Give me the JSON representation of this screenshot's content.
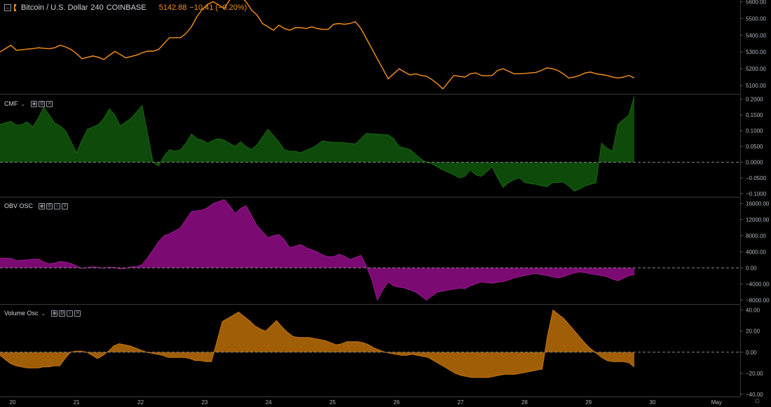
{
  "header": {
    "symbol": "Bitcoin / U.S. Dollar",
    "interval": "240",
    "exchange": "COINBASE",
    "last": "5142.88",
    "change": "−10.41 (−0.20%)"
  },
  "indicators": {
    "cmf": {
      "label": "CMF"
    },
    "obv": {
      "label": "OBV OSC"
    },
    "vol": {
      "label": "Volume Osc"
    }
  },
  "colors": {
    "price_line": "#f7931a",
    "cmf_fill": "#0e4a0a",
    "cmf_line": "#1b6512",
    "obv_fill": "#7b0a72",
    "obv_line": "#9a1a8f",
    "vol_fill": "#a05e07",
    "vol_line": "#c27410",
    "grid": "#333333",
    "axis_text": "#b2b5be"
  },
  "chart_data": [
    {
      "type": "line",
      "title": "Bitcoin / U.S. Dollar",
      "x": [
        0,
        1,
        2,
        3,
        4,
        5,
        6,
        7,
        8,
        9,
        10,
        11,
        12,
        13,
        14,
        15,
        16,
        17,
        18,
        19,
        20,
        21,
        22,
        23,
        24,
        25,
        26,
        27,
        28,
        29,
        30,
        31,
        32,
        33,
        34,
        35,
        36,
        37,
        38,
        39,
        40,
        41,
        42,
        43,
        44,
        45,
        46,
        47,
        48,
        49,
        50,
        51,
        52,
        53,
        54,
        55,
        56,
        57,
        58,
        59,
        60,
        61,
        62,
        63,
        64,
        65,
        66,
        67,
        68,
        69,
        70,
        71,
        72,
        73,
        74,
        75,
        76,
        77,
        78,
        79,
        80,
        81,
        82,
        83,
        84,
        85,
        86,
        87,
        88,
        89,
        90,
        91,
        92,
        93,
        94,
        95,
        96,
        97,
        98,
        99,
        100,
        101,
        102,
        103,
        104,
        105,
        106,
        107,
        108,
        109,
        110,
        111,
        112,
        113,
        114,
        115,
        116
      ],
      "series": [
        {
          "values": [
            5300,
            5320,
            5340,
            5310,
            5313,
            5317,
            5320,
            5325,
            5322,
            5319,
            5325,
            5340,
            5330,
            5315,
            5290,
            5260,
            5268,
            5276,
            5268,
            5255,
            5280,
            5303,
            5285,
            5265,
            5273,
            5281,
            5295,
            5305,
            5305,
            5315,
            5350,
            5385,
            5385,
            5385,
            5410,
            5450,
            5510,
            5555,
            5585,
            5600,
            5580,
            5560,
            5610,
            5660,
            5630,
            5600,
            5550,
            5520,
            5470,
            5450,
            5430,
            5460,
            5440,
            5430,
            5445,
            5445,
            5440,
            5450,
            5440,
            5435,
            5435,
            5465,
            5470,
            5465,
            5470,
            5480,
            5440,
            5380,
            5320,
            5260,
            5200,
            5140,
            5170,
            5200,
            5180,
            5163,
            5170,
            5160,
            5155,
            5135,
            5110,
            5080,
            5120,
            5160,
            5155,
            5150,
            5170,
            5175,
            5160,
            5158,
            5160,
            5190,
            5200,
            5185,
            5170,
            5170,
            5172,
            5175,
            5178,
            5190,
            5205,
            5200,
            5190,
            5170,
            5145,
            5150,
            5160,
            5175,
            5180,
            5170,
            5165,
            5160,
            5150,
            5145,
            5150,
            5160,
            5145
          ]
        }
      ],
      "ylim": [
        5050,
        5610
      ],
      "yticks": [
        "5600.00",
        "5500.00",
        "5400.00",
        "5300.00",
        "5200.00",
        "5100.00"
      ],
      "ytick_values": [
        5600,
        5500,
        5400,
        5300,
        5200,
        5100
      ],
      "xticks": [
        {
          "label": "20",
          "x": 0
        },
        {
          "label": "21",
          "x": 6
        },
        {
          "label": "22",
          "x": 12
        },
        {
          "label": "23",
          "x": 18
        },
        {
          "label": "24",
          "x": 24
        },
        {
          "label": "25",
          "x": 30
        },
        {
          "label": "26",
          "x": 36
        },
        {
          "label": "27",
          "x": 42
        },
        {
          "label": "28",
          "x": 48
        },
        {
          "label": "29",
          "x": 54
        },
        {
          "label": "30",
          "x": 60
        },
        {
          "label": "May",
          "x": 66
        }
      ]
    },
    {
      "type": "area",
      "title": "CMF",
      "series": [
        {
          "name": "CMF",
          "values": [
            0.12,
            0.125,
            0.13,
            0.118,
            0.12,
            0.128,
            0.112,
            0.14,
            0.175,
            0.15,
            0.125,
            0.115,
            0.1,
            0.065,
            0.03,
            0.07,
            0.105,
            0.112,
            0.12,
            0.14,
            0.17,
            0.15,
            0.115,
            0.128,
            0.14,
            0.16,
            0.18,
            0.09,
            0.0,
            -0.012,
            0.02,
            0.04,
            0.035,
            0.04,
            0.06,
            0.09,
            0.075,
            0.07,
            0.06,
            0.07,
            0.075,
            0.07,
            0.06,
            0.05,
            0.065,
            0.05,
            0.04,
            0.055,
            0.08,
            0.105,
            0.085,
            0.065,
            0.04,
            0.035,
            0.035,
            0.03,
            0.038,
            0.045,
            0.055,
            0.068,
            0.065,
            0.063,
            0.063,
            0.062,
            0.06,
            0.058,
            0.075,
            0.092,
            0.09,
            0.09,
            0.088,
            0.087,
            0.075,
            0.05,
            0.045,
            0.04,
            0.025,
            0.01,
            0.0,
            -0.005,
            -0.015,
            -0.025,
            -0.032,
            -0.04,
            -0.05,
            -0.045,
            -0.025,
            -0.04,
            -0.045,
            -0.03,
            -0.015,
            -0.05,
            -0.08,
            -0.065,
            -0.055,
            -0.05,
            -0.065,
            -0.068,
            -0.07,
            -0.075,
            -0.078,
            -0.065,
            -0.065,
            -0.063,
            -0.075,
            -0.092,
            -0.085,
            -0.075,
            -0.07,
            -0.065,
            0.06,
            0.045,
            0.035,
            0.12,
            0.135,
            0.15,
            0.21
          ]
        }
      ],
      "ylim": [
        -0.11,
        0.215
      ],
      "yticks": [
        "0.2000",
        "0.1500",
        "0.1000",
        "0.0500",
        "0.0000",
        "−0.0500",
        "−0.1000"
      ],
      "ytick_values": [
        0.2,
        0.15,
        0.1,
        0.05,
        0,
        -0.05,
        -0.1
      ]
    },
    {
      "type": "area",
      "title": "OBV OSC",
      "series": [
        {
          "name": "OBV OSC",
          "values": [
            2400,
            2400,
            2350,
            1800,
            1900,
            2000,
            2100,
            2200,
            1500,
            1000,
            1200,
            1600,
            1400,
            1100,
            500,
            -200,
            100,
            300,
            100,
            -100,
            200,
            100,
            -300,
            -100,
            300,
            300,
            800,
            2500,
            4500,
            6500,
            8000,
            8500,
            9200,
            10000,
            12000,
            14000,
            14200,
            14400,
            15000,
            16000,
            16500,
            17000,
            15500,
            13500,
            14800,
            15500,
            13000,
            10500,
            9000,
            7500,
            8000,
            8300,
            7000,
            5000,
            5400,
            5800,
            5000,
            4500,
            4000,
            3200,
            2800,
            2800,
            3400,
            2900,
            2100,
            2600,
            3100,
            500,
            -3000,
            -8000,
            -5500,
            -3500,
            -4500,
            -4800,
            -5000,
            -5500,
            -6000,
            -7000,
            -8000,
            -7000,
            -6000,
            -5800,
            -5500,
            -5300,
            -5000,
            -5200,
            -4500,
            -4000,
            -3500,
            -3700,
            -3800,
            -3600,
            -3400,
            -3000,
            -2500,
            -2200,
            -1900,
            -1600,
            -1400,
            -1700,
            -1900,
            -2200,
            -2500,
            -2200,
            -1700,
            -1300,
            -1000,
            -1200,
            -1500,
            -1700,
            -1900,
            -2200,
            -2800,
            -3200,
            -2600,
            -1900,
            -1800
          ]
        }
      ],
      "ylim": [
        -9000,
        17500
      ],
      "yticks": [
        "16000.00",
        "12000.00",
        "8000.00",
        "4000.00",
        "0.00",
        "−4000.00",
        "−8000.00"
      ],
      "ytick_values": [
        16000,
        12000,
        8000,
        4000,
        0,
        -4000,
        -8000
      ]
    },
    {
      "type": "area",
      "title": "Volume Osc",
      "series": [
        {
          "name": "Volume Osc",
          "values": [
            -3,
            -7,
            -11,
            -13,
            -14,
            -15,
            -15,
            -15,
            -14,
            -14,
            -13,
            -13,
            -6,
            0,
            1,
            1,
            0,
            -3,
            -6,
            -3,
            1,
            6,
            8,
            7,
            6,
            4,
            2,
            0,
            -1,
            -2,
            -3,
            -5,
            -5,
            -5,
            -5,
            -6,
            -8,
            -8,
            -9,
            -9,
            10,
            29,
            32,
            35,
            38,
            34,
            30,
            25,
            22,
            20,
            25,
            30,
            24,
            19,
            15,
            14,
            14,
            14,
            13,
            12,
            11,
            9,
            7,
            8,
            10,
            10,
            10,
            9,
            7,
            4,
            2,
            0,
            -1,
            -2,
            -3,
            -3,
            -2,
            -3,
            -4,
            -5,
            -8,
            -11,
            -14,
            -17,
            -20,
            -22,
            -23,
            -24,
            -24,
            -24,
            -24,
            -23,
            -22,
            -21,
            -21,
            -21,
            -20,
            -19,
            -18,
            -17,
            -16,
            16,
            40,
            36,
            32,
            26,
            20,
            14,
            8,
            3,
            -1,
            -5,
            -8,
            -9,
            -9,
            -9,
            -10,
            -14
          ]
        }
      ],
      "ylim": [
        -42,
        45
      ],
      "yticks": [
        "40.00",
        "20.00",
        "0.00",
        "−20.00",
        "−40.00"
      ],
      "ytick_values": [
        40,
        20,
        0,
        -20,
        -40
      ]
    }
  ]
}
